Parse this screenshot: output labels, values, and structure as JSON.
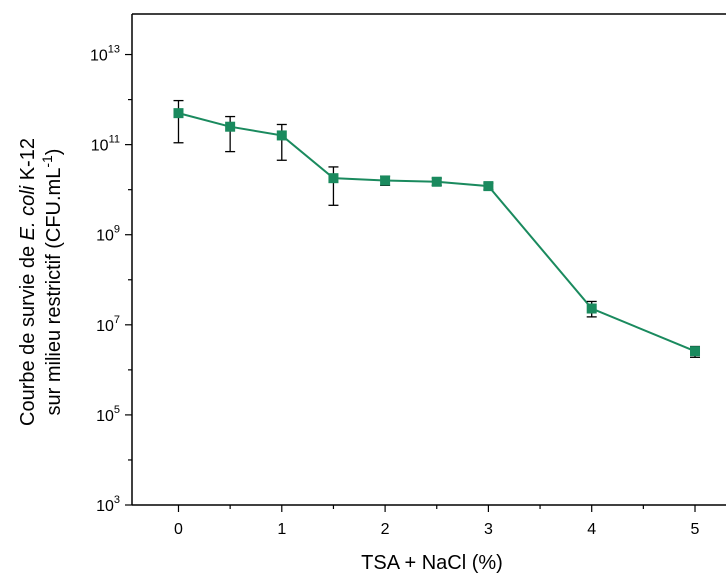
{
  "chart_data": {
    "type": "line",
    "title": "",
    "xlabel": "TSA + NaCl (%)",
    "ylabel_line1": {
      "part1": "Courbe de survie de ",
      "italic": "E. coli",
      "part2": " K-12"
    },
    "ylabel_line2": {
      "part1": "sur milieu restrictif (CFU.mL",
      "sup": "-1",
      "part2": ")"
    },
    "x_ticks": [
      "0",
      "1",
      "2",
      "3",
      "4",
      "5"
    ],
    "y_ticks": [
      {
        "base": "10",
        "exp": "3"
      },
      {
        "base": "10",
        "exp": "5"
      },
      {
        "base": "10",
        "exp": "7"
      },
      {
        "base": "10",
        "exp": "9"
      },
      {
        "base": "10",
        "exp": "11"
      },
      {
        "base": "10",
        "exp": "13"
      }
    ],
    "xlim": [
      -0.45,
      5.3
    ],
    "ylim_log10": [
      3,
      13.9
    ],
    "y_scale": "log",
    "grid": false,
    "legend": "none",
    "color": "#1a8a5e",
    "series": [
      {
        "x": [
          0,
          0.5,
          1,
          1.5,
          2,
          2.5,
          3,
          4,
          5
        ],
        "y": [
          500000000000.0,
          250000000000.0,
          160000000000.0,
          18000000000.0,
          16000000000.0,
          15000000000.0,
          12000000000.0,
          23000000.0,
          2600000.0
        ],
        "err_low": [
          110000000000.0,
          70000000000.0,
          45000000000.0,
          4500000000.0,
          12500000000.0,
          12500000000.0,
          10000000000.0,
          15000000.0,
          1900000.0
        ],
        "err_high": [
          950000000000.0,
          420000000000.0,
          280000000000.0,
          32000000000.0,
          20000000000.0,
          18000000000.0,
          14000000000.0,
          33000000.0,
          3300000.0
        ]
      }
    ]
  }
}
